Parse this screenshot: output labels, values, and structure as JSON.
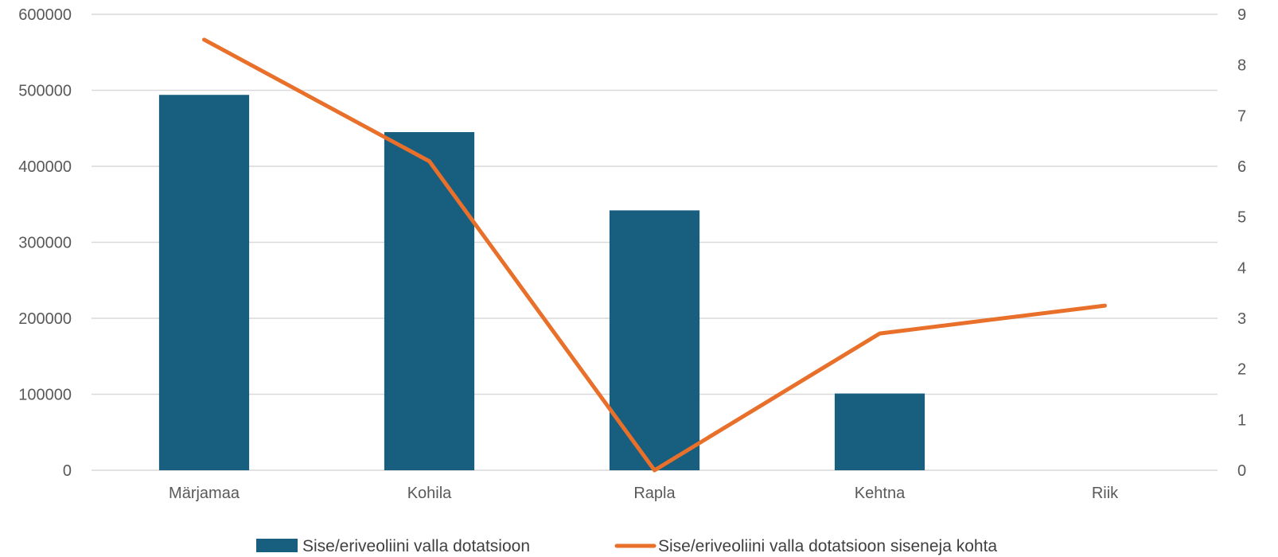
{
  "chart_data": {
    "type": "bar",
    "categories": [
      "Märjamaa",
      "Kohila",
      "Rapla",
      "Kehtna",
      "Riik"
    ],
    "series": [
      {
        "name": "Sise/eriveoliini valla dotatsioon",
        "type": "bar",
        "axis": "left",
        "color": "#175e7f",
        "values": [
          494000,
          445000,
          342000,
          101000,
          null
        ]
      },
      {
        "name": "Sise/eriveoliini valla dotatsioon siseneja kohta",
        "type": "line",
        "axis": "right",
        "color": "#e8702a",
        "values": [
          8.5,
          6.1,
          0,
          2.7,
          3.25
        ]
      }
    ],
    "y_left": {
      "min": 0,
      "max": 600000,
      "ticks": [
        "0",
        "100000",
        "200000",
        "300000",
        "400000",
        "500000",
        "600000"
      ]
    },
    "y_right": {
      "min": 0,
      "max": 9,
      "ticks": [
        "0",
        "1",
        "2",
        "3",
        "4",
        "5",
        "6",
        "7",
        "8",
        "9"
      ]
    },
    "grid": true,
    "gridColor": "#d9d9d9",
    "legend_position": "bottom"
  }
}
